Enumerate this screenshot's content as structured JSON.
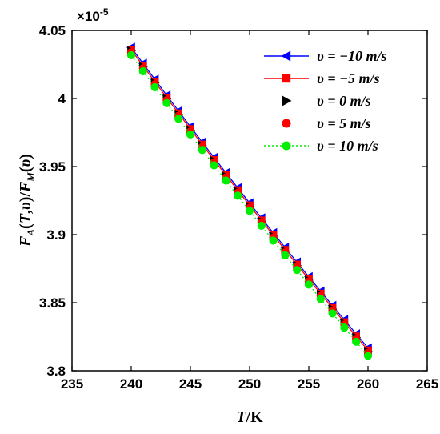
{
  "chart_data": {
    "type": "line",
    "xlabel": "T/K",
    "ylabel": "F_A(T,υ)/F_M(υ)",
    "y_multiplier_label": "×10",
    "y_multiplier_exponent": "-5",
    "xlim": [
      235,
      265
    ],
    "ylim": [
      3.8,
      4.05
    ],
    "x_ticks": [
      235,
      240,
      245,
      250,
      255,
      260,
      265
    ],
    "y_ticks": [
      3.8,
      3.85,
      3.9,
      3.95,
      4.0,
      4.05
    ],
    "x_tick_labels": [
      "235",
      "240",
      "245",
      "250",
      "255",
      "260",
      "265"
    ],
    "y_tick_labels": [
      "3.8",
      "3.85",
      "3.9",
      "3.95",
      "4",
      "4.05"
    ],
    "legend_position": "top-right",
    "x": [
      240,
      241,
      242,
      243,
      244,
      245,
      246,
      247,
      248,
      249,
      250,
      251,
      252,
      253,
      254,
      255,
      256,
      257,
      258,
      259,
      260
    ],
    "series": [
      {
        "name": "υ = −10 m/s",
        "color": "#0000ff",
        "marker": "triangle-left",
        "line": "solid",
        "values": [
          4.0375,
          4.0257,
          4.014,
          4.0023,
          3.9908,
          3.9793,
          3.9679,
          3.9566,
          3.9454,
          3.9343,
          3.9232,
          3.9122,
          3.9013,
          3.8905,
          3.8797,
          3.869,
          3.8584,
          3.8478,
          3.8374,
          3.827,
          3.8167
        ]
      },
      {
        "name": "υ = −5 m/s",
        "color": "#ff0000",
        "marker": "square",
        "line": "solid",
        "values": [
          4.0358,
          4.024,
          4.0123,
          4.0006,
          3.9891,
          3.9776,
          3.9662,
          3.9549,
          3.9437,
          3.9326,
          3.9215,
          3.9105,
          3.8996,
          3.8888,
          3.878,
          3.8673,
          3.8567,
          3.8461,
          3.8357,
          3.8253,
          3.815
        ]
      },
      {
        "name": "υ = 0 m/s",
        "color": "#000000",
        "marker": "triangle-right",
        "line": "none",
        "values": [
          4.035,
          4.0232,
          4.0115,
          3.9998,
          3.9883,
          3.9768,
          3.9654,
          3.9541,
          3.9429,
          3.9318,
          3.9207,
          3.9097,
          3.8988,
          3.888,
          3.8772,
          3.8665,
          3.8559,
          3.8453,
          3.8349,
          3.8245,
          3.8142
        ]
      },
      {
        "name": "υ = 5 m/s",
        "color": "#ff0000",
        "marker": "circle",
        "line": "none",
        "values": [
          4.034,
          4.0222,
          4.0105,
          3.9988,
          3.9873,
          3.9758,
          3.9644,
          3.9531,
          3.9419,
          3.9308,
          3.9197,
          3.9087,
          3.8978,
          3.887,
          3.8762,
          3.8655,
          3.8549,
          3.8443,
          3.8339,
          3.8235,
          3.8132
        ]
      },
      {
        "name": "υ = 10 m/s",
        "color": "#00ee00",
        "marker": "circle",
        "line": "dotted",
        "values": [
          4.0318,
          4.02,
          4.0083,
          3.9966,
          3.9851,
          3.9736,
          3.9622,
          3.9509,
          3.9397,
          3.9286,
          3.9175,
          3.9065,
          3.8956,
          3.8848,
          3.874,
          3.8633,
          3.8527,
          3.8421,
          3.8317,
          3.8213,
          3.811
        ]
      }
    ]
  }
}
